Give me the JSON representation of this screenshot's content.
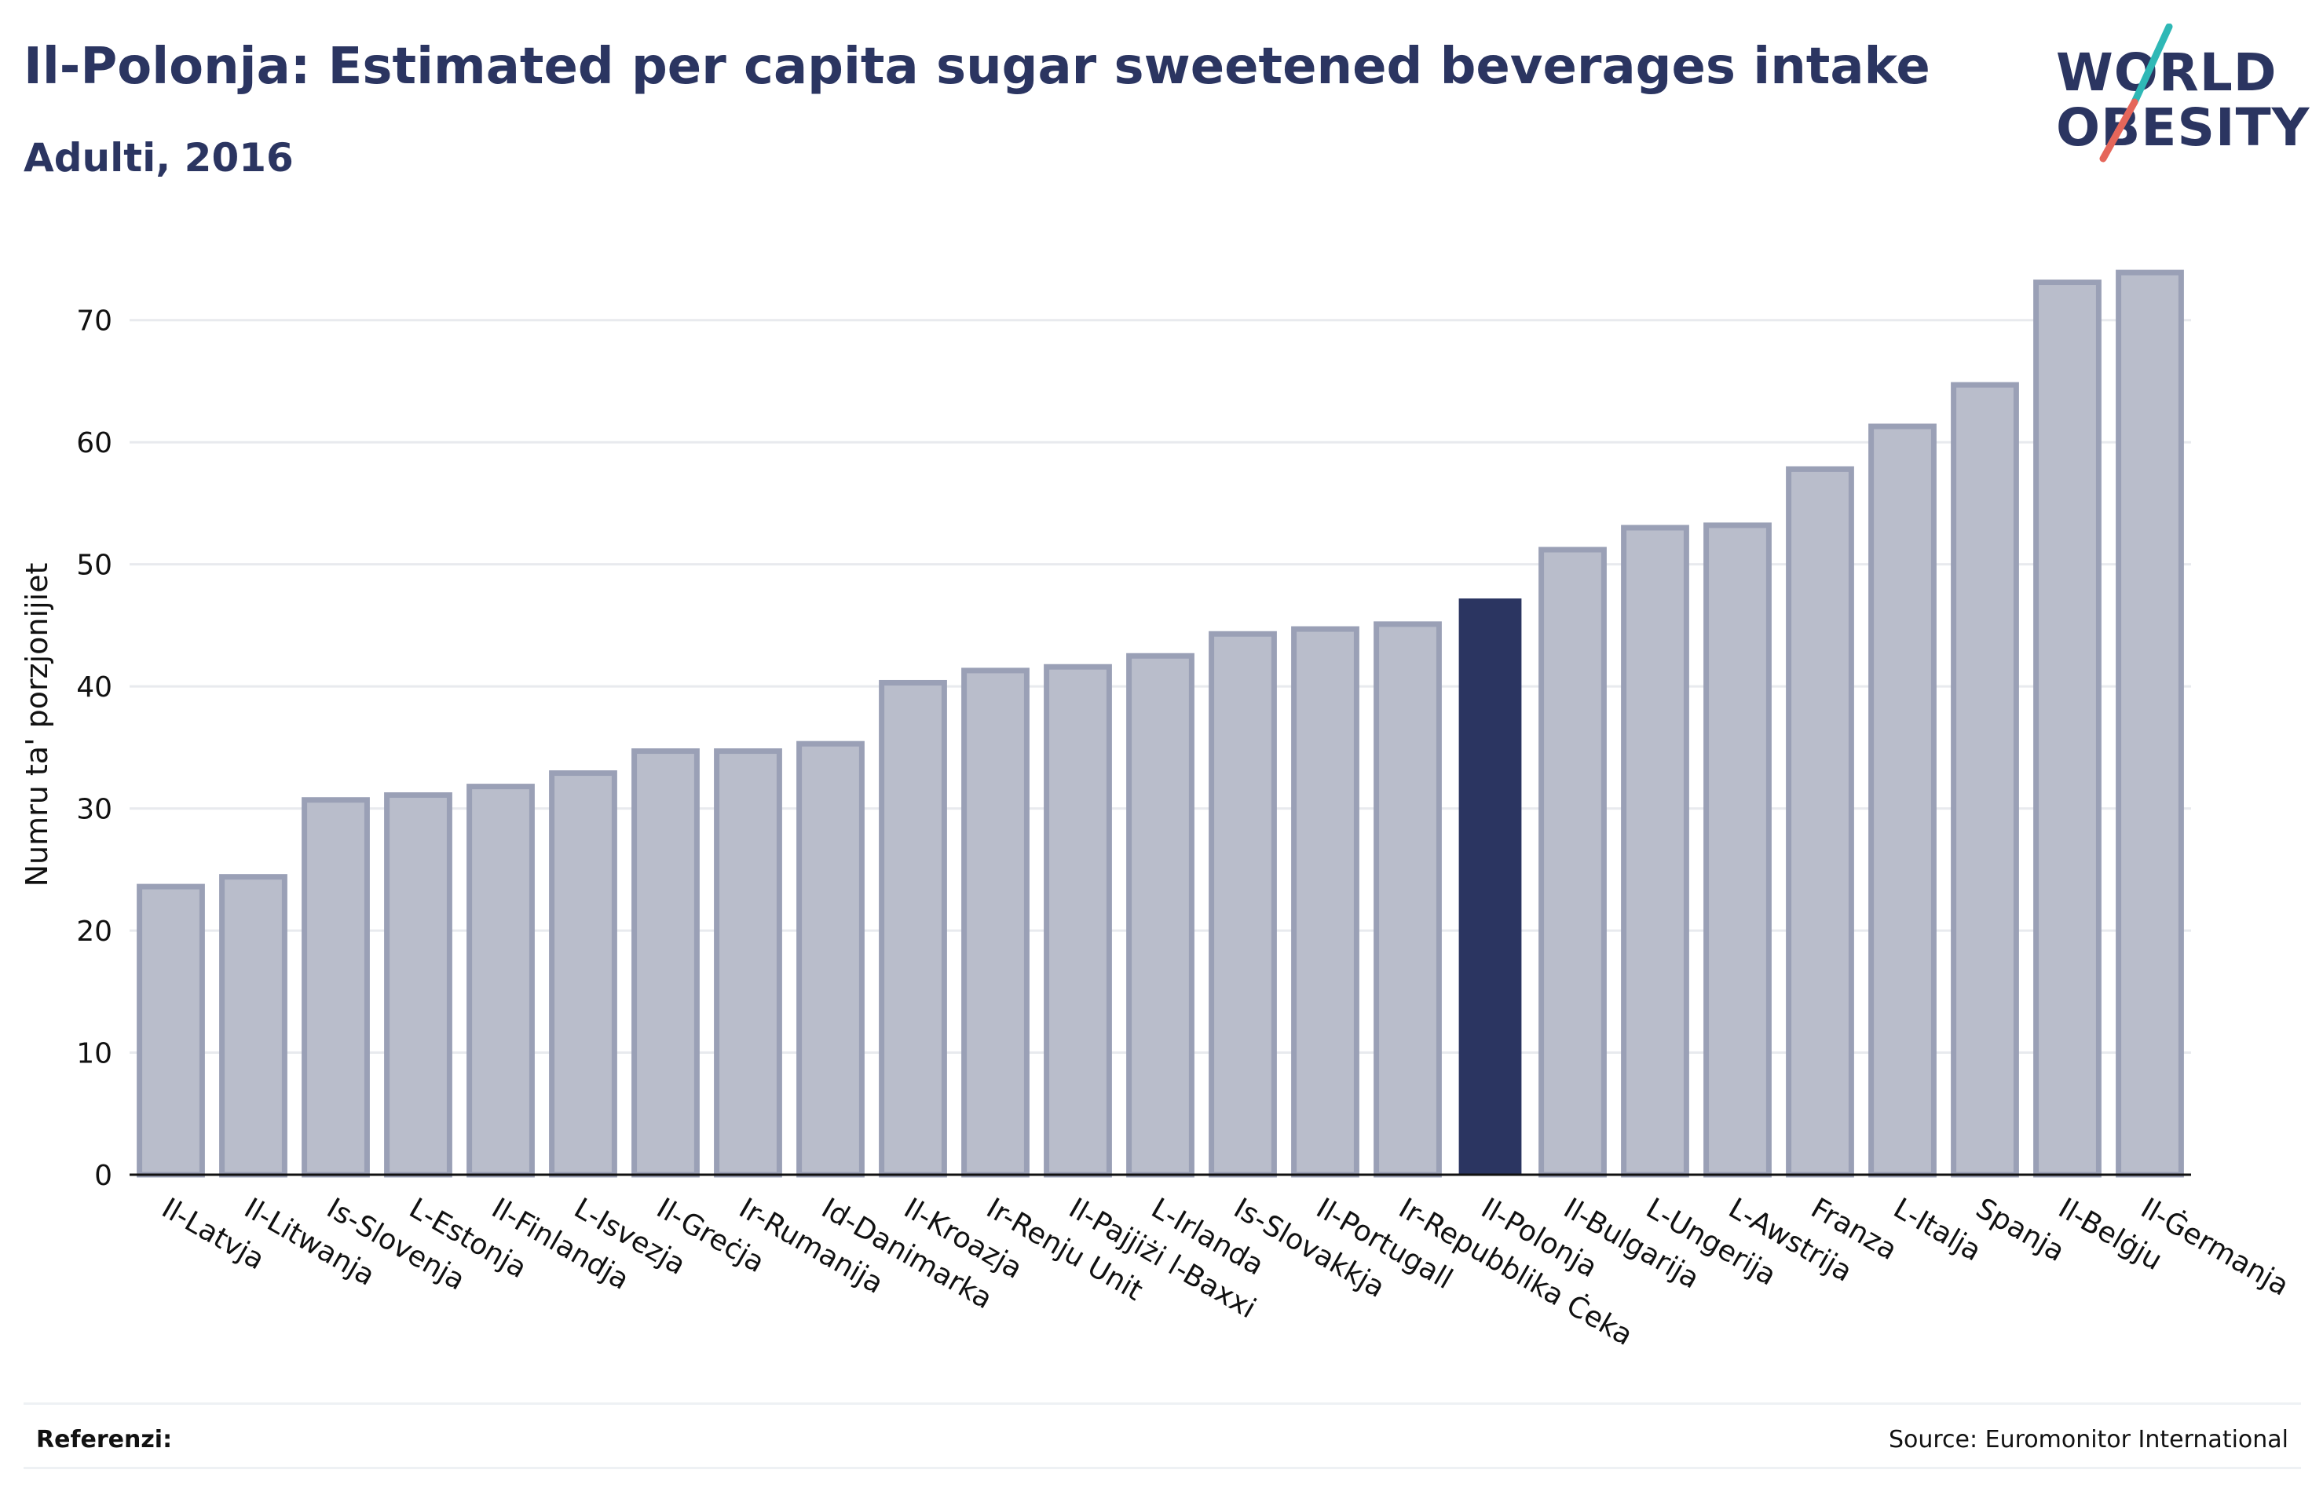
{
  "header": {
    "title": "Il-Polonja: Estimated per capita sugar sweetened beverages intake",
    "subtitle": "Adulti, 2016"
  },
  "logo": {
    "line1": "WORLD",
    "line2": "OBESITY",
    "slash_colors": [
      "#2fb8b6",
      "#e5665a"
    ]
  },
  "footer": {
    "references_label": "Referenzi:",
    "source": "Source: Euromonitor International"
  },
  "colors": {
    "bar": "#b9bdcb",
    "bar_border": "#9aa0b6",
    "highlight": "#2b3561",
    "grid": "#e8eaee",
    "text": "#2b3561"
  },
  "chart_data": {
    "type": "bar",
    "title": "Il-Polonja: Estimated per capita sugar sweetened beverages intake",
    "subtitle": "Adulti, 2016",
    "xlabel": "",
    "ylabel": "Numru ta' porzjonijiet",
    "ylim": [
      0,
      75
    ],
    "yticks": [
      0,
      10,
      20,
      30,
      40,
      50,
      60,
      70
    ],
    "grid": true,
    "highlight": "Il-Polonja",
    "categories": [
      "Il-Latvja",
      "Il-Litwanja",
      "Is-Slovenja",
      "L-Estonja",
      "Il-Finlandja",
      "L-Isvezja",
      "Il-Greċja",
      "Ir-Rumanija",
      "Id-Danimarka",
      "Il-Kroazja",
      "Ir-Renju Unit",
      "Il-Pajjiżi l-Baxxi",
      "L-Irlanda",
      "Is-Slovakkja",
      "Il-Portugall",
      "Ir-Repubblika Ċeka",
      "Il-Polonja",
      "Il-Bulgarija",
      "L-Ungerija",
      "L-Awstrija",
      "Franza",
      "L-Italja",
      "Spanja",
      "Il-Belġju",
      "Il-Ġermanja"
    ],
    "values": [
      23.6,
      24.4,
      30.7,
      31.1,
      31.8,
      32.9,
      34.7,
      34.7,
      35.3,
      40.3,
      41.3,
      41.6,
      42.5,
      44.3,
      44.7,
      45.1,
      47.2,
      51.2,
      53.0,
      53.2,
      57.8,
      61.3,
      64.7,
      73.1,
      73.9
    ]
  }
}
